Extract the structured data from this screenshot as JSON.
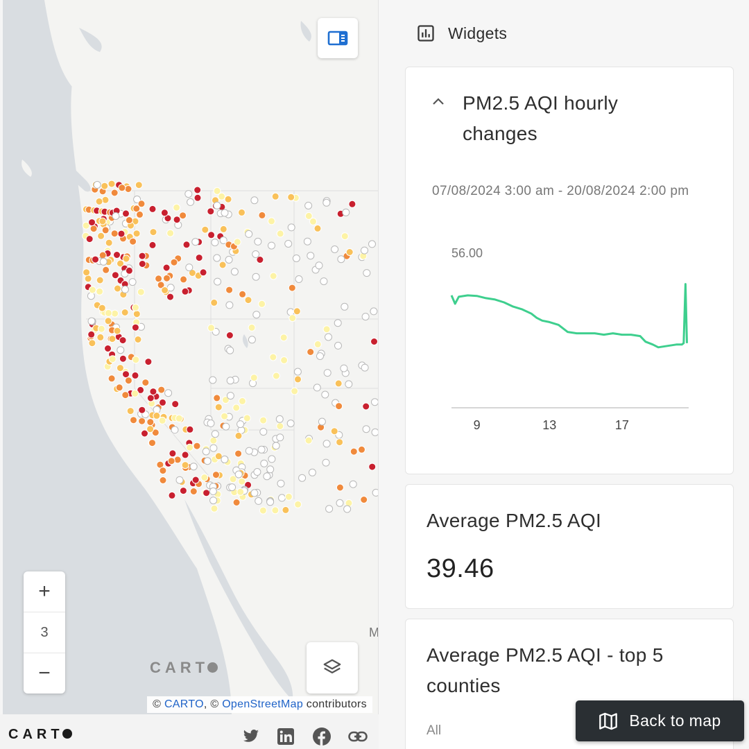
{
  "map": {
    "zoom_in": "+",
    "zoom_level": "3",
    "zoom_out": "−",
    "watermark": "CART",
    "edge_label": "M",
    "attribution": {
      "prefix1": "© ",
      "carto_link": "CARTO",
      "prefix2": ", © ",
      "osm_link": "OpenStreetMap",
      "suffix": " contributors"
    },
    "point_colors": {
      "very_high": "#c8202f",
      "high": "#f08a3c",
      "medium": "#f9c15a",
      "low": "#fdf3a6",
      "none": "#ffffff"
    }
  },
  "footer": {
    "logo": "CART",
    "links": [
      "twitter-icon",
      "linkedin-icon",
      "facebook-icon",
      "link-icon"
    ]
  },
  "sidebar": {
    "title": "Widgets",
    "hourly": {
      "title": "PM2.5 AQI hourly changes",
      "range": "07/08/2024 3:00 am - 20/08/2024 2:00 pm",
      "ymax_label": "56.00",
      "line_color": "#3ecf8e"
    },
    "average": {
      "title": "Average PM2.5 AQI",
      "value": "39.46"
    },
    "top5": {
      "title": "Average PM2.5 AQI - top 5 counties",
      "filter": "All"
    }
  },
  "back_button": {
    "label": "Back to map"
  },
  "chart_data": {
    "type": "line",
    "title": "PM2.5 AQI hourly changes",
    "xlabel": "",
    "ylabel": "",
    "x_ticks": [
      "9",
      "13",
      "17"
    ],
    "ylim": [
      0,
      56
    ],
    "series": [
      {
        "x": [
          7.6,
          7.8,
          8.0,
          8.5,
          9.0,
          9.5,
          10.0,
          10.5,
          11.0,
          11.5,
          12.0,
          12.3,
          12.6,
          13.0,
          13.5,
          14.0,
          14.5,
          15.0,
          15.5,
          16.0,
          16.5,
          17.0,
          17.5,
          18.0,
          18.3,
          18.7,
          19.0,
          19.5,
          20.0,
          20.3,
          20.4,
          20.5,
          20.58
        ],
        "y": [
          40,
          37,
          39.5,
          40,
          39.8,
          39,
          38.5,
          37.5,
          36,
          35,
          33.5,
          32,
          31,
          30.5,
          29.5,
          27,
          26.5,
          26.5,
          26.5,
          26,
          26.5,
          26,
          26,
          25.5,
          23.5,
          22.5,
          21.5,
          22,
          22.5,
          22.5,
          23,
          44,
          23
        ]
      }
    ]
  }
}
